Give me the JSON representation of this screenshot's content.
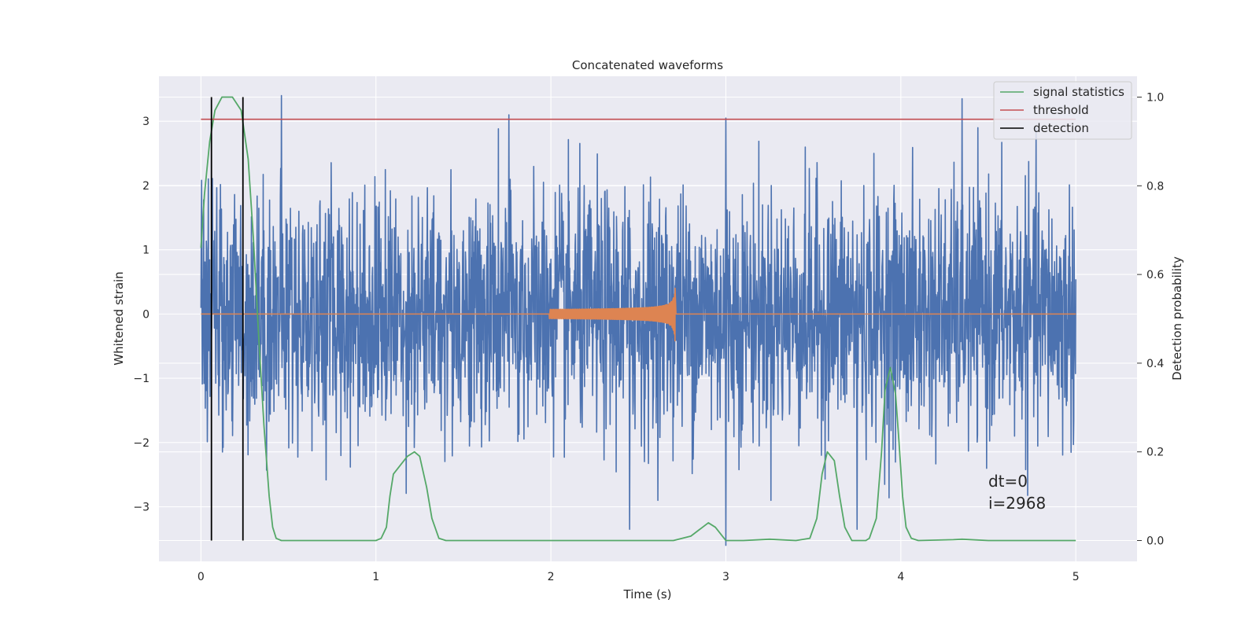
{
  "chart_data": {
    "type": "line",
    "title": "Concatenated waveforms",
    "xlabel": "Time (s)",
    "ylabel_left": "Whitened strain",
    "ylabel_right": "Detection probability",
    "xlim": [
      -0.24,
      5.35
    ],
    "ylim_left": [
      -3.85,
      3.7
    ],
    "ylim_right": [
      -0.047,
      1.047
    ],
    "x_ticks": [
      0,
      1,
      2,
      3,
      4,
      5
    ],
    "y_ticks_left": [
      -3,
      -2,
      -1,
      0,
      1,
      2,
      3
    ],
    "y_ticks_right": [
      0.0,
      0.2,
      0.4,
      0.6,
      0.8,
      1.0
    ],
    "grid": true,
    "legend_position": "top-right",
    "series": [
      {
        "name": "",
        "axis": "left",
        "color": "#4c72b0",
        "kind": "whitened strain noise",
        "x_range": [
          0,
          5
        ],
        "spikes": [
          [
            0.46,
            3.4
          ],
          [
            1.76,
            3.1
          ],
          [
            3.0,
            3.05
          ],
          [
            4.35,
            3.35
          ],
          [
            2.45,
            -3.35
          ],
          [
            3.0,
            -3.6
          ],
          [
            3.75,
            -3.35
          ]
        ]
      },
      {
        "name": "",
        "axis": "left",
        "color": "#dd8452",
        "kind": "injected chirp",
        "x_range": [
          1.99,
          2.72
        ],
        "peak_time": 2.71,
        "peak_amplitude": 0.45
      },
      {
        "name": "signal statistics",
        "axis": "right",
        "color": "#55a868",
        "points": [
          [
            0.0,
            0.66
          ],
          [
            0.02,
            0.78
          ],
          [
            0.05,
            0.9
          ],
          [
            0.08,
            0.97
          ],
          [
            0.12,
            1.0
          ],
          [
            0.18,
            1.0
          ],
          [
            0.23,
            0.97
          ],
          [
            0.27,
            0.86
          ],
          [
            0.3,
            0.68
          ],
          [
            0.33,
            0.46
          ],
          [
            0.36,
            0.26
          ],
          [
            0.39,
            0.1
          ],
          [
            0.41,
            0.03
          ],
          [
            0.43,
            0.005
          ],
          [
            0.46,
            0.0
          ],
          [
            1.0,
            0.0
          ],
          [
            1.03,
            0.005
          ],
          [
            1.06,
            0.03
          ],
          [
            1.08,
            0.1
          ],
          [
            1.1,
            0.15
          ],
          [
            1.14,
            0.17
          ],
          [
            1.18,
            0.19
          ],
          [
            1.22,
            0.2
          ],
          [
            1.25,
            0.19
          ],
          [
            1.29,
            0.12
          ],
          [
            1.32,
            0.05
          ],
          [
            1.36,
            0.005
          ],
          [
            1.4,
            0.0
          ],
          [
            2.7,
            0.0
          ],
          [
            2.8,
            0.01
          ],
          [
            2.85,
            0.025
          ],
          [
            2.9,
            0.04
          ],
          [
            2.94,
            0.03
          ],
          [
            3.0,
            0.0
          ],
          [
            3.1,
            0.0
          ],
          [
            3.25,
            0.003
          ],
          [
            3.4,
            0.0
          ],
          [
            3.48,
            0.005
          ],
          [
            3.52,
            0.05
          ],
          [
            3.55,
            0.15
          ],
          [
            3.58,
            0.2
          ],
          [
            3.62,
            0.18
          ],
          [
            3.65,
            0.1
          ],
          [
            3.68,
            0.03
          ],
          [
            3.72,
            0.0
          ],
          [
            3.8,
            0.0
          ],
          [
            3.82,
            0.005
          ],
          [
            3.86,
            0.05
          ],
          [
            3.89,
            0.2
          ],
          [
            3.91,
            0.34
          ],
          [
            3.94,
            0.39
          ],
          [
            3.97,
            0.33
          ],
          [
            3.99,
            0.22
          ],
          [
            4.01,
            0.1
          ],
          [
            4.03,
            0.03
          ],
          [
            4.06,
            0.005
          ],
          [
            4.1,
            0.0
          ],
          [
            4.3,
            0.002
          ],
          [
            4.35,
            0.003
          ],
          [
            4.5,
            0.0
          ],
          [
            5.0,
            0.0
          ]
        ]
      },
      {
        "name": "threshold",
        "axis": "right",
        "color": "#c44e52",
        "x": [
          0,
          5
        ],
        "y": [
          0.95,
          0.95
        ]
      },
      {
        "name": "detection",
        "axis": "right",
        "color": "#000000",
        "vlines": [
          0.06,
          0.24
        ],
        "y_range": [
          0.0,
          1.0
        ]
      }
    ],
    "annotation": {
      "lines": [
        "dt=0",
        "i=2968"
      ],
      "x": 4.5,
      "y_right": 0.1
    }
  }
}
